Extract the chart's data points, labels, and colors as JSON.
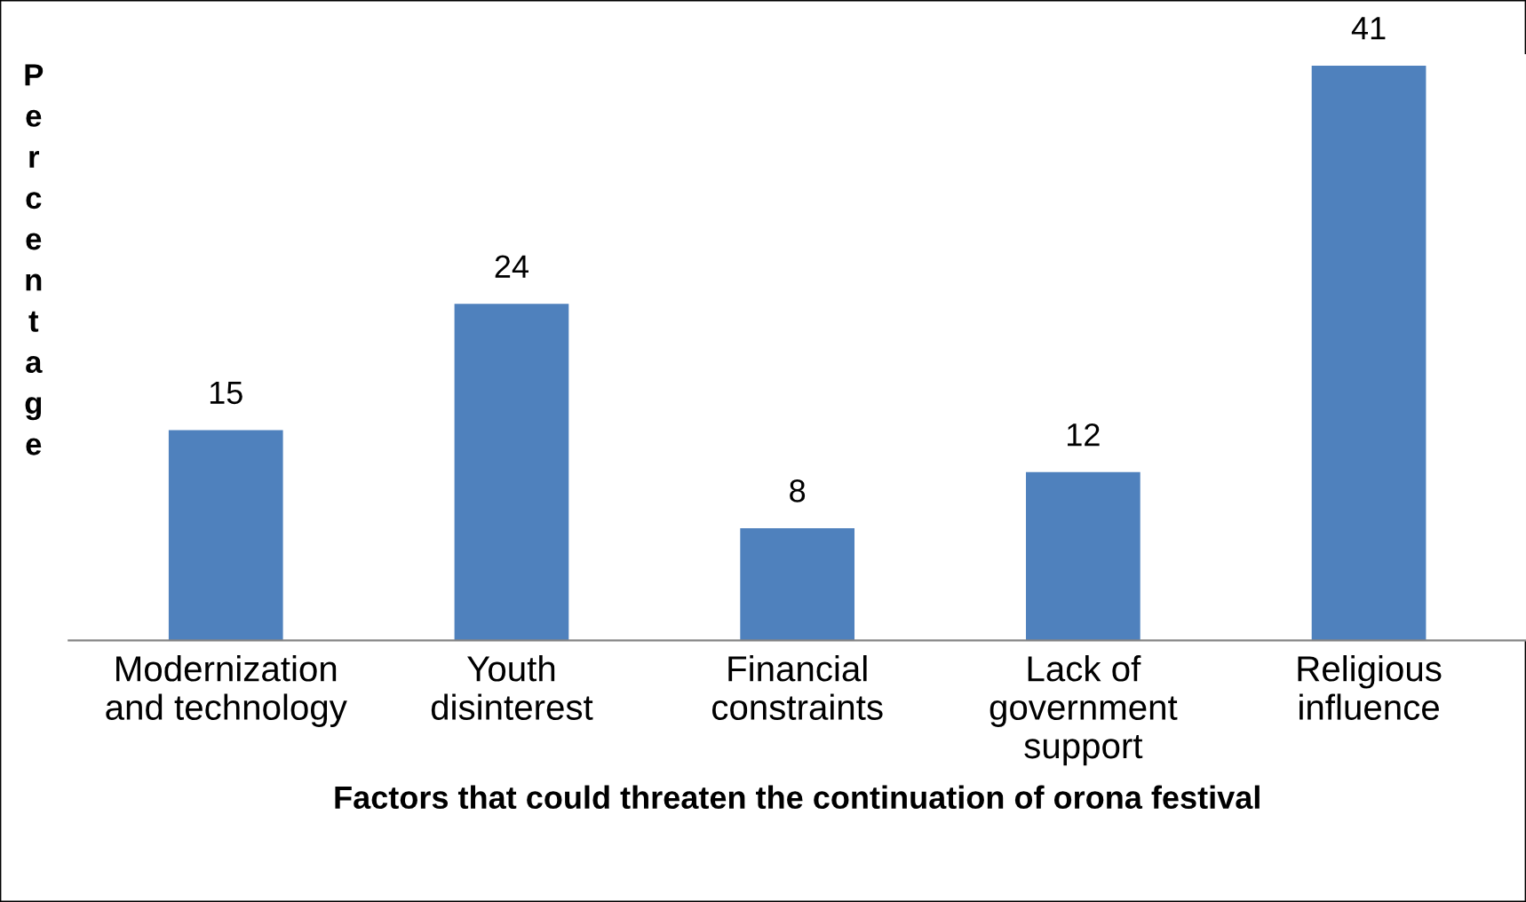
{
  "chart_data": {
    "type": "bar",
    "xlabel": "Factors that could threaten the continuation of orona festival",
    "ylabel": "Percentage",
    "categories": [
      "Modernization\nand technology",
      "Youth\ndisinterest",
      "Financial\nconstraints",
      "Lack of\ngovernment\nsupport",
      "Religious\ninfluence"
    ],
    "values": [
      15,
      24,
      8,
      12,
      41
    ],
    "color": "#4f81bd",
    "data_labels": true,
    "grid": false,
    "legend": false
  }
}
